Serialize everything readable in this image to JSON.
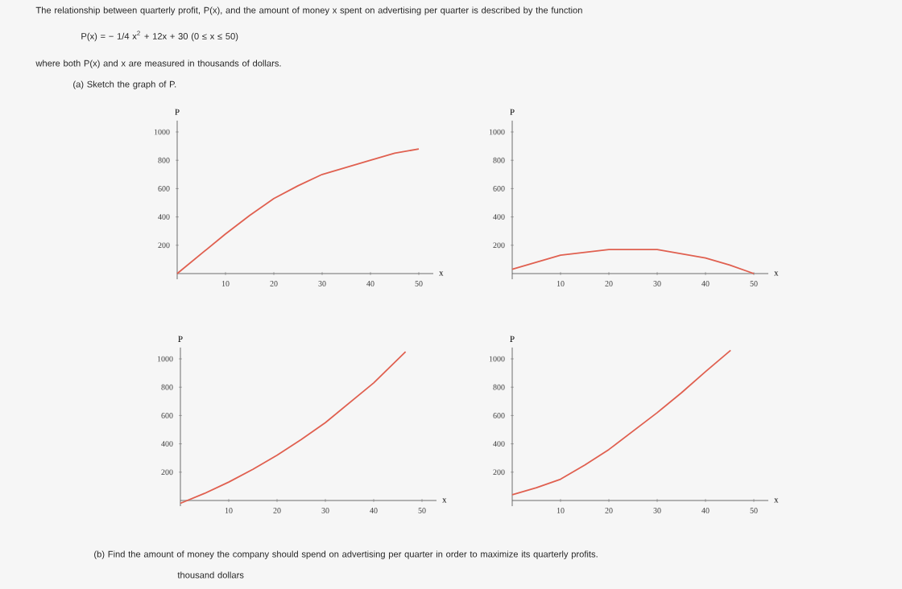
{
  "chart_data": [
    {
      "type": "line",
      "annotations": [
        "The relationship between quarterly profit, P(x), and the amount of money x spent on advertising per quarter is described by the function",
        "P(x) = − 1/4 x$^{2}$ + 12x + 30     (0 ≤ x ≤ 50)",
        "where both P(x) and x are measured in thousands of dollars.",
        "(a) Sketch the graph of P."
      ],
      "xlabel": "x",
      "ylabel": "P",
      "color": "#e06050",
      "xlim": [
        0,
        53
      ],
      "ylim": [
        -40,
        1080
      ],
      "xticks": [
        10,
        20,
        30,
        40,
        50
      ],
      "yticks": [
        200,
        400,
        600,
        800,
        1000
      ],
      "x": [
        0,
        5,
        10,
        15,
        20,
        25,
        30,
        35,
        40,
        45,
        50
      ],
      "values": [
        0,
        140,
        280,
        410,
        530,
        620,
        700,
        750,
        800,
        850,
        880
      ]
    },
    {
      "type": "line",
      "xlabel": "x",
      "ylabel": "P",
      "color": "#e06050",
      "xlim": [
        0,
        53
      ],
      "ylim": [
        -40,
        1080
      ],
      "xticks": [
        10,
        20,
        30,
        40,
        50
      ],
      "yticks": [
        200,
        400,
        600,
        800,
        1000
      ],
      "x": [
        0,
        5,
        10,
        15,
        20,
        24,
        30,
        35,
        40,
        45,
        50
      ],
      "values": [
        30,
        80,
        130,
        150,
        170,
        170,
        170,
        140,
        110,
        60,
        0
      ]
    },
    {
      "type": "line",
      "xlabel": "x",
      "ylabel": "P",
      "color": "#e06050",
      "xlim": [
        0,
        53
      ],
      "ylim": [
        -40,
        1080
      ],
      "xticks": [
        10,
        20,
        30,
        40,
        50
      ],
      "yticks": [
        200,
        400,
        600,
        800,
        1000
      ],
      "x": [
        0,
        5,
        10,
        15,
        20,
        25,
        30,
        35,
        40,
        46.6
      ],
      "values": [
        -20,
        50,
        130,
        220,
        320,
        430,
        550,
        690,
        830,
        1050
      ]
    },
    {
      "type": "line",
      "annotations": [
        "(b) Find the amount of money the company should spend on advertising per quarter in order to maximize its quarterly profits.",
        "thousand dollars"
      ],
      "xlabel": "x",
      "ylabel": "P",
      "color": "#e06050",
      "xlim": [
        0,
        53
      ],
      "ylim": [
        -40,
        1080
      ],
      "xticks": [
        10,
        20,
        30,
        40,
        50
      ],
      "yticks": [
        200,
        400,
        600,
        800,
        1000
      ],
      "x": [
        0,
        5,
        10,
        15,
        20,
        25,
        30,
        35,
        40,
        45.2
      ],
      "values": [
        40,
        90,
        150,
        250,
        360,
        490,
        620,
        760,
        910,
        1060
      ]
    }
  ]
}
